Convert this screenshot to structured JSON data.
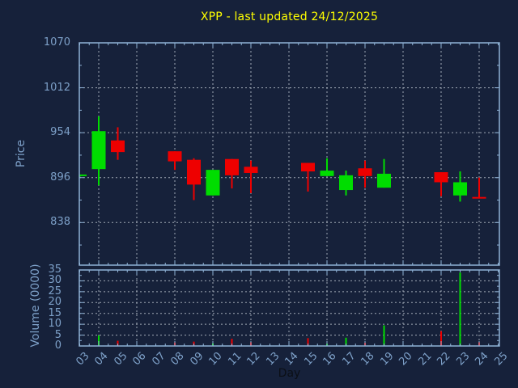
{
  "title": {
    "text": "XPP - last updated 24/12/2025",
    "symbol": "XPP",
    "last_updated": "24/12/2025",
    "color": "#ffff00"
  },
  "colors": {
    "background": "#16213a",
    "axis": "#8fb2d6",
    "tick_label": "#7da0c8",
    "grid": "#b9c1cb",
    "up": "#00dd00",
    "down": "#ee0000",
    "day_label": "#0b0f16"
  },
  "price_axis": {
    "label": "Price",
    "ticks": [
      1070,
      1012,
      954,
      896,
      838
    ]
  },
  "volume_axis": {
    "label": "Volume (0000)",
    "ticks": [
      35,
      30,
      25,
      20,
      15,
      10,
      5,
      0
    ]
  },
  "x_axis": {
    "label": "Day",
    "days": [
      "03",
      "04",
      "05",
      "06",
      "07",
      "08",
      "09",
      "10",
      "11",
      "12",
      "13",
      "14",
      "15",
      "16",
      "17",
      "18",
      "19",
      "20",
      "21",
      "22",
      "23",
      "24",
      "25"
    ],
    "grid_days": [
      4,
      6,
      8,
      10,
      12,
      14,
      16,
      18,
      20,
      22,
      24
    ]
  },
  "chart_data": {
    "type": "candlestick",
    "title": "XPP - last updated 24/12/2025",
    "xlabel": "Day",
    "ylabel": "Price",
    "ylabel2": "Volume (0000)",
    "price_ylim": [
      783,
      1070
    ],
    "volume_ylim": [
      0,
      35
    ],
    "grid": "dashed; vertical gridlines at even days, horizontal gridlines at labeled ticks",
    "legend": "none",
    "candles": [
      {
        "day": "03",
        "open": 898,
        "high": 900,
        "low": 897,
        "close": 900,
        "volume": 0,
        "direction": "up"
      },
      {
        "day": "04",
        "open": 907,
        "high": 975,
        "low": 886,
        "close": 956,
        "volume": 4.8,
        "direction": "up"
      },
      {
        "day": "05",
        "open": 944,
        "high": 961,
        "low": 919,
        "close": 929,
        "volume": 2.4,
        "direction": "down"
      },
      {
        "day": "08",
        "open": 930,
        "high": 930,
        "low": 906,
        "close": 917,
        "volume": 1.6,
        "direction": "down"
      },
      {
        "day": "09",
        "open": 919,
        "high": 921,
        "low": 867,
        "close": 887,
        "volume": 2.0,
        "direction": "down"
      },
      {
        "day": "10",
        "open": 873,
        "high": 906,
        "low": 873,
        "close": 906,
        "volume": 1.2,
        "direction": "up"
      },
      {
        "day": "11",
        "open": 920,
        "high": 920,
        "low": 882,
        "close": 899,
        "volume": 3.3,
        "direction": "down"
      },
      {
        "day": "12",
        "open": 910,
        "high": 918,
        "low": 876,
        "close": 902,
        "volume": 1.7,
        "direction": "down"
      },
      {
        "day": "15",
        "open": 915,
        "high": 915,
        "low": 878,
        "close": 904,
        "volume": 3.6,
        "direction": "down"
      },
      {
        "day": "16",
        "open": 898,
        "high": 921,
        "low": 898,
        "close": 905,
        "volume": 1.0,
        "direction": "up"
      },
      {
        "day": "17",
        "open": 880,
        "high": 905,
        "low": 873,
        "close": 899,
        "volume": 3.8,
        "direction": "up"
      },
      {
        "day": "18",
        "open": 908,
        "high": 918,
        "low": 883,
        "close": 898,
        "volume": 1.5,
        "direction": "down"
      },
      {
        "day": "19",
        "open": 883,
        "high": 920,
        "low": 883,
        "close": 901,
        "volume": 9.5,
        "direction": "up"
      },
      {
        "day": "22",
        "open": 903,
        "high": 903,
        "low": 872,
        "close": 890,
        "volume": 6.8,
        "direction": "down"
      },
      {
        "day": "23",
        "open": 873,
        "high": 904,
        "low": 865,
        "close": 890,
        "volume": 33.8,
        "direction": "up"
      },
      {
        "day": "24",
        "open": 871,
        "high": 896,
        "low": 869,
        "close": 869,
        "volume": 1.7,
        "direction": "down"
      }
    ],
    "no_data_days": [
      "06",
      "07",
      "13",
      "14",
      "20",
      "21",
      "25"
    ]
  }
}
